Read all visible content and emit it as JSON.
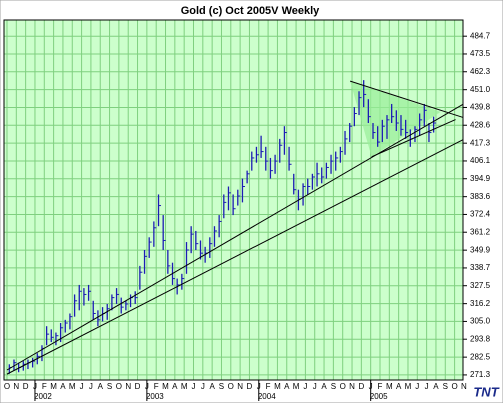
{
  "chart_data": {
    "type": "ohlc",
    "title": "Gold (c) Oct 2005V Weekly",
    "logo": "TNT",
    "color": "#1c1cb4",
    "background": "#ccffcc",
    "grid": true,
    "grid_color": "#7fd07f",
    "line_color": "#000000",
    "fill_color": "#99ee99",
    "months": [
      "O",
      "N",
      "D",
      "J",
      "F",
      "M",
      "A",
      "M",
      "J",
      "J",
      "A",
      "S",
      "O",
      "N",
      "D",
      "J",
      "F",
      "M",
      "A",
      "M",
      "J",
      "J",
      "A",
      "S",
      "O",
      "N",
      "D",
      "J",
      "F",
      "M",
      "A",
      "M",
      "J",
      "J",
      "A",
      "S",
      "O",
      "N",
      "D",
      "J",
      "F",
      "M",
      "A",
      "M",
      "J",
      "J",
      "A",
      "S",
      "O",
      "N"
    ],
    "years": [
      "2002",
      "2003",
      "2004",
      "2005"
    ],
    "xlim": [
      -0.32,
      48.9
    ],
    "ylim": [
      268.1,
      494.9
    ],
    "yticks": [
      271.3,
      282.5,
      293.8,
      {
        "value": 305.0,
        "label": "305.0"
      },
      316.2,
      327.5,
      338.7,
      349.9,
      361.2,
      372.4,
      383.6,
      394.9,
      406.1,
      417.3,
      428.6,
      439.8,
      {
        "value": 451.0,
        "label": "451.0"
      },
      462.3,
      473.5,
      484.7
    ],
    "x": [
      0.25,
      0.75,
      1.25,
      1.75,
      2.25,
      2.75,
      3.25,
      3.75,
      4.25,
      4.75,
      5.25,
      5.75,
      6.25,
      6.75,
      7.25,
      7.75,
      8.25,
      8.75,
      9.25,
      9.75,
      10.25,
      10.75,
      11.25,
      11.75,
      12.25,
      12.75,
      13.25,
      13.75,
      14.25,
      14.75,
      15.25,
      15.75,
      16.25,
      16.75,
      17.25,
      17.75,
      18.25,
      18.75,
      19.25,
      19.75,
      20.25,
      20.75,
      21.25,
      21.75,
      22.25,
      22.75,
      23.25,
      23.75,
      24.25,
      24.75,
      25.25,
      25.75,
      26.25,
      26.75,
      27.25,
      27.75,
      28.25,
      28.75,
      29.25,
      29.75,
      30.25,
      30.75,
      31.25,
      31.75,
      32.25,
      32.75,
      33.25,
      33.75,
      34.25,
      34.75,
      35.25,
      35.75,
      36.25,
      36.75,
      37.25,
      37.75,
      38.25,
      38.75,
      39.25,
      39.75,
      40.25,
      40.75,
      41.25,
      41.75,
      42.25,
      42.75,
      43.25,
      43.75,
      44.25,
      44.75,
      45.25,
      45.75
    ],
    "high": [
      278,
      281,
      279,
      280,
      281,
      282,
      285,
      290,
      302,
      300,
      298,
      304,
      306,
      310,
      322,
      328,
      326,
      328,
      318,
      312,
      314,
      316,
      322,
      326,
      320,
      318,
      322,
      324,
      340,
      350,
      358,
      368,
      385,
      372,
      350,
      342,
      332,
      335,
      355,
      365,
      362,
      356,
      352,
      358,
      365,
      372,
      385,
      390,
      385,
      388,
      395,
      400,
      412,
      415,
      422,
      415,
      408,
      410,
      420,
      428,
      415,
      398,
      388,
      392,
      395,
      398,
      405,
      402,
      405,
      410,
      412,
      415,
      425,
      430,
      440,
      450,
      457,
      445,
      430,
      428,
      432,
      435,
      442,
      438,
      435,
      432,
      426,
      428,
      436,
      442,
      430,
      434
    ],
    "low": [
      272,
      274,
      273,
      274,
      275,
      276,
      278,
      280,
      290,
      292,
      290,
      292,
      298,
      300,
      308,
      312,
      315,
      318,
      306,
      302,
      305,
      306,
      312,
      316,
      310,
      312,
      314,
      316,
      325,
      335,
      345,
      352,
      365,
      350,
      335,
      328,
      322,
      325,
      335,
      348,
      350,
      344,
      342,
      345,
      352,
      358,
      370,
      375,
      372,
      378,
      380,
      392,
      400,
      405,
      408,
      400,
      395,
      398,
      405,
      410,
      400,
      385,
      375,
      378,
      385,
      388,
      390,
      392,
      395,
      398,
      400,
      405,
      410,
      418,
      428,
      435,
      440,
      430,
      420,
      415,
      418,
      420,
      430,
      425,
      422,
      420,
      415,
      418,
      422,
      428,
      418,
      424
    ],
    "close": [
      276,
      279,
      276,
      278,
      279,
      280,
      283,
      288,
      297,
      295,
      296,
      301,
      304,
      308,
      318,
      324,
      322,
      324,
      310,
      306,
      310,
      313,
      320,
      322,
      314,
      316,
      320,
      320,
      336,
      346,
      355,
      364,
      378,
      356,
      340,
      332,
      328,
      332,
      350,
      360,
      354,
      348,
      348,
      354,
      362,
      368,
      380,
      386,
      376,
      384,
      390,
      398,
      408,
      410,
      412,
      406,
      400,
      406,
      416,
      424,
      404,
      388,
      382,
      390,
      390,
      396,
      398,
      396,
      402,
      406,
      408,
      412,
      420,
      428,
      436,
      446,
      448,
      434,
      424,
      418,
      428,
      432,
      434,
      430,
      426,
      424,
      420,
      426,
      432,
      438,
      424,
      430
    ],
    "trendlines": [
      {
        "x": [
          0,
          48.9
        ],
        "y": [
          274.4,
          441.8
        ]
      },
      {
        "x": [
          0,
          48.9
        ],
        "y": [
          271.8,
          419.5
        ]
      },
      {
        "x": [
          39.1,
          48.1
        ],
        "y": [
          408.7,
          432.2
        ]
      },
      {
        "x": [
          36.8,
          48.9
        ],
        "y": [
          456.4,
          433.5
        ]
      }
    ],
    "triangle": {
      "x": [
        36.8,
        46.5,
        39.1
      ],
      "y": [
        456.4,
        437.0,
        408.7
      ]
    }
  }
}
